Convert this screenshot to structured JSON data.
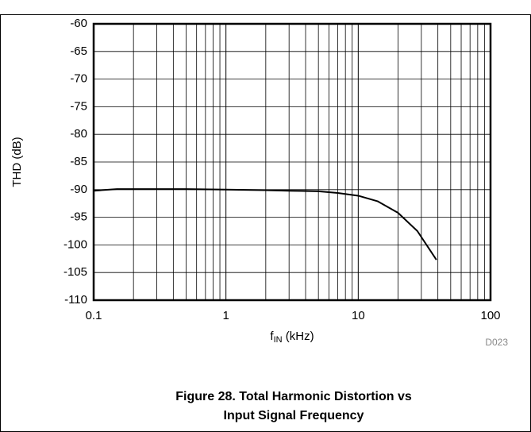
{
  "chart_data": {
    "type": "line",
    "y_label": "THD (dB)",
    "x_label_parts": [
      "f",
      "IN",
      " (kHz)"
    ],
    "note": "D023",
    "caption": [
      "Figure 28. Total Harmonic Distortion vs",
      "Input Signal Frequency"
    ],
    "x": [
      0.1,
      0.15,
      0.2,
      0.3,
      0.5,
      1,
      2,
      3,
      5,
      7,
      10,
      14,
      20,
      28,
      39
    ],
    "series": [
      {
        "name": "THD",
        "color": "#000000",
        "values": [
          -90.2,
          -89.9,
          -89.9,
          -89.9,
          -89.9,
          -90,
          -90.1,
          -90.2,
          -90.3,
          -90.6,
          -91.1,
          -92.1,
          -94.2,
          -97.5,
          -102.7
        ]
      }
    ],
    "xlim": [
      0.1,
      100
    ],
    "xticks": [
      0.1,
      1,
      10,
      100
    ],
    "xgrid": [
      0.2,
      0.3,
      0.4,
      0.5,
      0.6,
      0.7,
      0.8,
      0.9,
      2,
      3,
      4,
      5,
      6,
      7,
      8,
      9,
      20,
      30,
      40,
      50,
      60,
      70,
      80,
      90
    ],
    "ylim": [
      -110,
      -60
    ],
    "yticks": [
      -60,
      -65,
      -70,
      -75,
      -80,
      -85,
      -90,
      -95,
      -100,
      -105,
      -110
    ],
    "x_log": true,
    "grid": true
  }
}
